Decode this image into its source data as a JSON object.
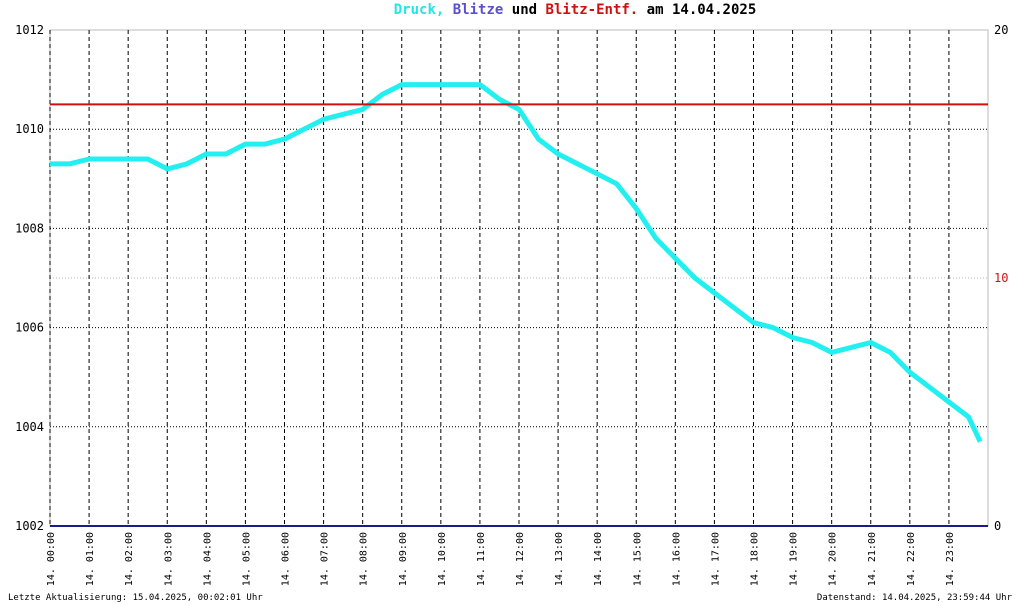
{
  "chart_data": {
    "type": "line",
    "title": [
      "Druck,",
      "Blitze",
      "und",
      "Blitz-Entf.",
      "am 14.04.2025"
    ],
    "footer_left": "Letzte Aktualisierung: 15.04.2025, 00:02:01 Uhr",
    "footer_right": "Datenstand: 14.04.2025, 23:59:44 Uhr",
    "xlim": [
      0,
      24
    ],
    "xticks": [
      {
        "value": 0,
        "label": "14. 00:00"
      },
      {
        "value": 1,
        "label": "14. 01:00"
      },
      {
        "value": 2,
        "label": "14. 02:00"
      },
      {
        "value": 3,
        "label": "14. 03:00"
      },
      {
        "value": 4,
        "label": "14. 04:00"
      },
      {
        "value": 5,
        "label": "14. 05:00"
      },
      {
        "value": 6,
        "label": "14. 06:00"
      },
      {
        "value": 7,
        "label": "14. 07:00"
      },
      {
        "value": 8,
        "label": "14. 08:00"
      },
      {
        "value": 9,
        "label": "14. 09:00"
      },
      {
        "value": 10,
        "label": "14. 10:00"
      },
      {
        "value": 11,
        "label": "14. 11:00"
      },
      {
        "value": 12,
        "label": "14. 12:00"
      },
      {
        "value": 13,
        "label": "14. 13:00"
      },
      {
        "value": 14,
        "label": "14. 14:00"
      },
      {
        "value": 15,
        "label": "14. 15:00"
      },
      {
        "value": 16,
        "label": "14. 16:00"
      },
      {
        "value": 17,
        "label": "14. 17:00"
      },
      {
        "value": 18,
        "label": "14. 18:00"
      },
      {
        "value": 19,
        "label": "14. 19:00"
      },
      {
        "value": 20,
        "label": "14. 20:00"
      },
      {
        "value": 21,
        "label": "14. 21:00"
      },
      {
        "value": 22,
        "label": "14. 22:00"
      },
      {
        "value": 23,
        "label": "14. 23:00"
      }
    ],
    "ylim": [
      1002,
      1012
    ],
    "yticks": [
      1002,
      1004,
      1006,
      1008,
      1010,
      1012
    ],
    "y2lim": [
      0,
      20
    ],
    "y2ticks": [
      0,
      10,
      20
    ],
    "grid": true,
    "series": [
      {
        "name": "Druck",
        "color": "#22f0f0",
        "x": [
          0,
          0.5,
          1,
          1.5,
          2,
          2.5,
          3,
          3.5,
          4,
          4.5,
          5,
          5.5,
          6,
          6.5,
          7,
          7.5,
          8,
          8.5,
          9,
          9.5,
          10,
          10.5,
          11,
          11.5,
          12,
          12.5,
          13,
          13.5,
          14,
          14.5,
          15,
          15.5,
          16,
          16.5,
          17,
          17.5,
          18,
          18.5,
          19,
          19.5,
          20,
          20.5,
          21,
          21.5,
          22,
          22.5,
          23,
          23.5,
          23.8
        ],
        "values": [
          1009.3,
          1009.3,
          1009.4,
          1009.4,
          1009.4,
          1009.4,
          1009.2,
          1009.3,
          1009.5,
          1009.5,
          1009.7,
          1009.7,
          1009.8,
          1010.0,
          1010.2,
          1010.3,
          1010.4,
          1010.7,
          1010.9,
          1010.9,
          1010.9,
          1010.9,
          1010.9,
          1010.6,
          1010.4,
          1009.8,
          1009.5,
          1009.3,
          1009.1,
          1008.9,
          1008.4,
          1007.8,
          1007.4,
          1007.0,
          1006.7,
          1006.4,
          1006.1,
          1006.0,
          1005.8,
          1005.7,
          1005.5,
          1005.6,
          1005.7,
          1005.5,
          1005.1,
          1004.8,
          1004.5,
          1004.2,
          1003.7
        ]
      },
      {
        "name": "Blitze",
        "color": "#1a1a8c",
        "axis": "y2",
        "x": [
          0,
          24
        ],
        "values": [
          0,
          0
        ]
      },
      {
        "name": "Blitz-Entf.",
        "color": "#d01010",
        "axis": "y2",
        "x": [
          0,
          24
        ],
        "values": [
          17,
          17
        ]
      }
    ]
  }
}
